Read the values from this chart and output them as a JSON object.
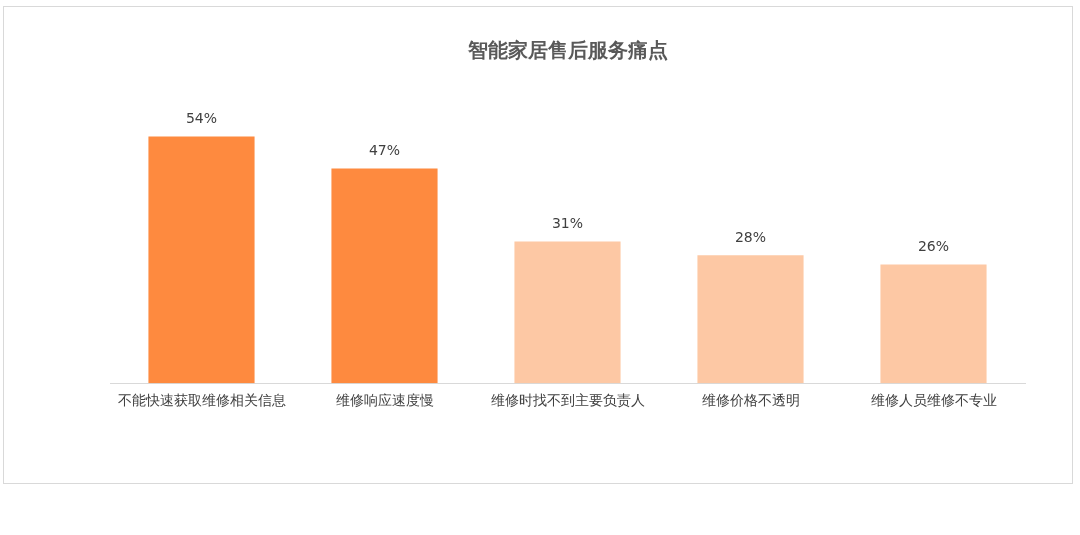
{
  "chart_data": {
    "type": "bar",
    "title": "智能家居售后服务痛点",
    "categories": [
      "不能快速获取维修相关信息",
      "维修响应速度慢",
      "维修时找不到主要负责人",
      "维修价格不透明",
      "维修人员维修不专业"
    ],
    "values": [
      54,
      47,
      31,
      28,
      26
    ],
    "colors": [
      "#fe8a3f",
      "#fe8a3f",
      "#fdc8a4",
      "#fdc8a4",
      "#fdc8a4"
    ],
    "value_labels": [
      "54%",
      "47%",
      "31%",
      "28%",
      "26%"
    ],
    "grid": false,
    "legend": false
  }
}
